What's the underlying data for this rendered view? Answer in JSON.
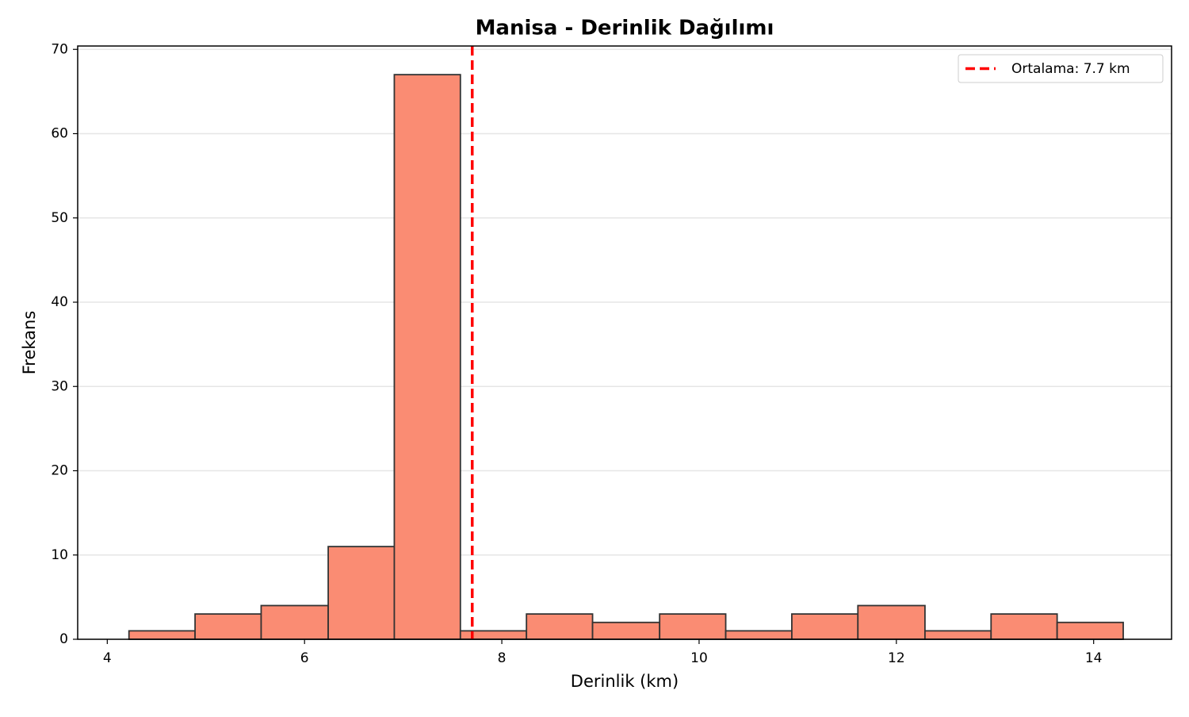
{
  "chart_data": {
    "type": "histogram",
    "title": "Manisa - Derinlik Dağılımı",
    "x_label": "Derinlik (km)",
    "y_label": "Frekans",
    "bins": [
      4.22,
      4.89,
      5.56,
      6.24,
      6.91,
      7.58,
      8.25,
      8.92,
      9.6,
      10.27,
      10.94,
      11.61,
      12.29,
      12.96,
      13.63,
      14.3
    ],
    "values": [
      1,
      3,
      4,
      11,
      67,
      1,
      3,
      2,
      3,
      1,
      3,
      4,
      1,
      3,
      2
    ],
    "color": "#fa8c73",
    "edgecolor": "#333333",
    "xlim": [
      3.7,
      14.79
    ],
    "ylim": [
      0,
      70.4
    ],
    "xticks": [
      4,
      6,
      8,
      10,
      12,
      14
    ],
    "yticks": [
      0,
      10,
      20,
      30,
      40,
      50,
      60,
      70
    ],
    "grid": "y",
    "mean_line": {
      "value": 7.7,
      "label": "Ortalama: 7.7 km",
      "color": "#ff0000"
    },
    "legend": "upper right"
  }
}
